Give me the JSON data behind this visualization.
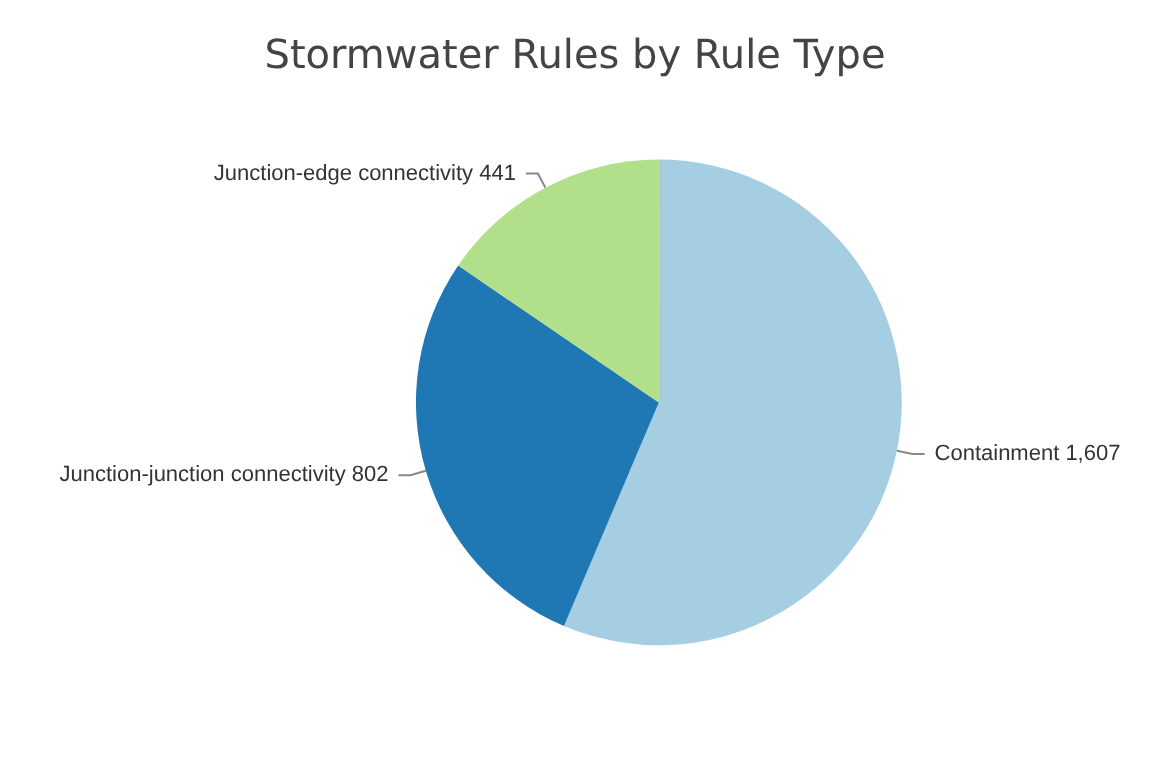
{
  "chart_data": {
    "type": "pie",
    "title": "Stormwater Rules by Rule Type",
    "categories": [
      "Containment",
      "Junction-junction connectivity",
      "Junction-edge connectivity"
    ],
    "values": [
      1607,
      802,
      441
    ],
    "value_labels": [
      "1,607",
      "802",
      "441"
    ],
    "colors": [
      "#a6cee3",
      "#1f78b4",
      "#b2df8a"
    ],
    "legend": false
  }
}
